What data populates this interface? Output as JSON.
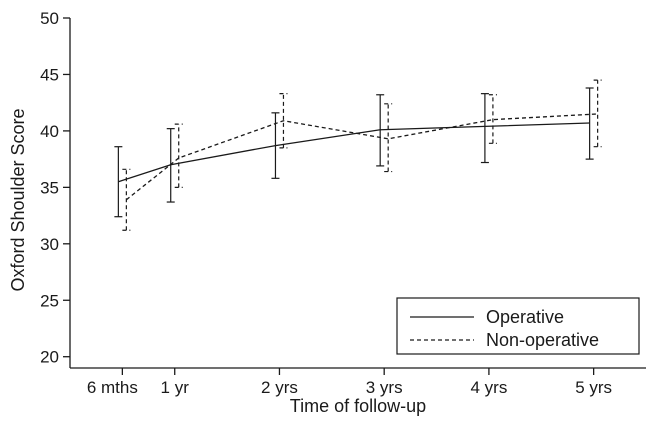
{
  "chart_data": {
    "type": "line",
    "title": "",
    "xlabel": "Time of follow-up",
    "ylabel": "Oxford Shoulder Score",
    "x_categories": [
      "6 mths",
      "1 yr",
      "2 yrs",
      "3 yrs",
      "4 yrs",
      "5 yrs"
    ],
    "x_positions_months": [
      6,
      12,
      24,
      36,
      48,
      60
    ],
    "xlim": [
      0,
      66
    ],
    "ylim": [
      19,
      50
    ],
    "yticks": [
      20,
      25,
      30,
      35,
      40,
      45,
      50
    ],
    "legend_position": "bottom-right",
    "grid": false,
    "series": [
      {
        "name": "Operative",
        "line_style": "solid",
        "means": [
          35.5,
          37.0,
          38.7,
          40.1,
          40.4,
          40.7
        ],
        "lower": [
          32.4,
          33.7,
          35.8,
          36.9,
          37.2,
          37.5
        ],
        "upper": [
          38.6,
          40.2,
          41.6,
          43.2,
          43.3,
          43.8
        ]
      },
      {
        "name": "Non-operative",
        "line_style": "dashed",
        "means": [
          33.9,
          37.6,
          40.9,
          39.3,
          41.0,
          41.5
        ],
        "lower": [
          31.2,
          35.0,
          38.5,
          36.4,
          38.9,
          38.6
        ],
        "upper": [
          36.6,
          40.6,
          43.3,
          42.4,
          43.2,
          44.5
        ]
      }
    ]
  }
}
